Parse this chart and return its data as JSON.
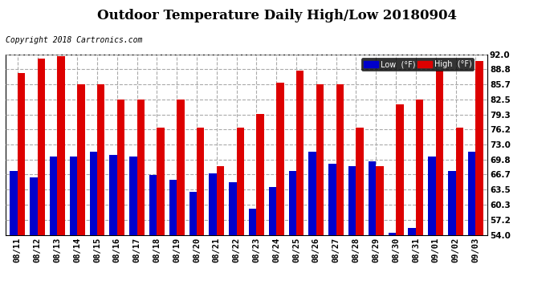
{
  "title": "Outdoor Temperature Daily High/Low 20180904",
  "copyright": "Copyright 2018 Cartronics.com",
  "legend_low": "Low  (°F)",
  "legend_high": "High  (°F)",
  "low_color": "#0000cc",
  "high_color": "#dd0000",
  "background_color": "#ffffff",
  "dates": [
    "08/11",
    "08/12",
    "08/13",
    "08/14",
    "08/15",
    "08/16",
    "08/17",
    "08/18",
    "08/19",
    "08/20",
    "08/21",
    "08/22",
    "08/23",
    "08/24",
    "08/25",
    "08/26",
    "08/27",
    "08/28",
    "08/29",
    "08/30",
    "08/31",
    "09/01",
    "09/02",
    "09/03"
  ],
  "lows": [
    67.5,
    66.0,
    70.5,
    70.5,
    71.5,
    70.8,
    70.5,
    66.5,
    65.5,
    63.0,
    67.0,
    65.0,
    59.5,
    64.0,
    67.5,
    71.5,
    69.0,
    68.5,
    69.5,
    54.5,
    55.5,
    70.5,
    67.5,
    71.5
  ],
  "highs": [
    88.0,
    91.0,
    91.5,
    85.7,
    85.7,
    82.5,
    82.5,
    76.5,
    82.5,
    76.5,
    68.5,
    76.5,
    79.5,
    86.0,
    88.5,
    85.7,
    85.7,
    76.5,
    68.5,
    81.5,
    82.5,
    88.5,
    76.5,
    90.5
  ],
  "ylim": [
    54.0,
    92.0
  ],
  "yticks": [
    54.0,
    57.2,
    60.3,
    63.5,
    66.7,
    69.8,
    73.0,
    76.2,
    79.3,
    82.5,
    85.7,
    88.8,
    92.0
  ],
  "grid_color": "#aaaaaa",
  "title_fontsize": 12,
  "copyright_fontsize": 7,
  "tick_fontsize": 7.5,
  "bar_width": 0.38,
  "figsize": [
    6.9,
    3.75
  ],
  "dpi": 100
}
